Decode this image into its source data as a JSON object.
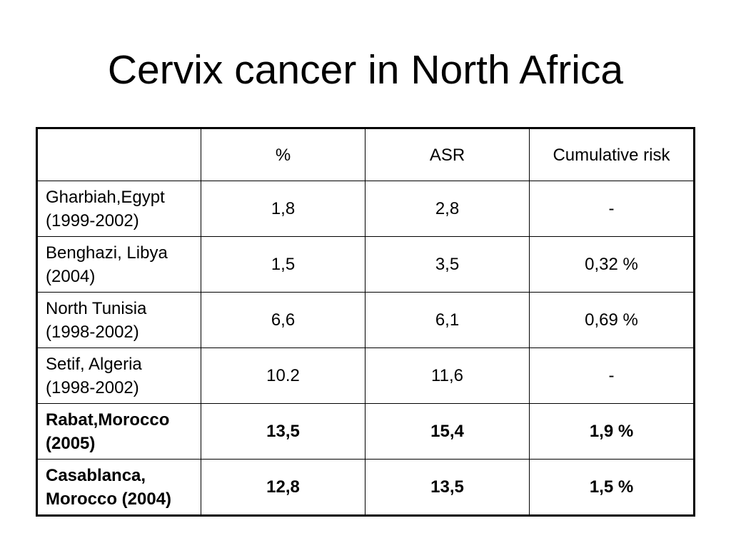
{
  "title": "Cervix cancer in North Africa",
  "table": {
    "headers": [
      "",
      "%",
      "ASR",
      "Cumulative risk"
    ],
    "rows": [
      {
        "location": "Gharbiah,Egypt",
        "period": "(1999-2002)",
        "percent": "1,8",
        "asr": "2,8",
        "cumulative_risk": "-",
        "bold": false
      },
      {
        "location": "Benghazi, Libya",
        "period": "(2004)",
        "percent": "1,5",
        "asr": "3,5",
        "cumulative_risk": "0,32 %",
        "bold": false
      },
      {
        "location": "North Tunisia",
        "period": "(1998-2002)",
        "percent": "6,6",
        "asr": "6,1",
        "cumulative_risk": "0,69 %",
        "bold": false
      },
      {
        "location": "Setif, Algeria",
        "period": "(1998-2002)",
        "percent": "10.2",
        "asr": "11,6",
        "cumulative_risk": "-",
        "bold": false
      },
      {
        "location": "Rabat,Morocco",
        "period": "(2005)",
        "percent": "13,5",
        "asr": "15,4",
        "cumulative_risk": "1,9 %",
        "bold": true
      },
      {
        "location": "Casablanca,",
        "period": "Morocco (2004)",
        "percent": "12,8",
        "asr": "13,5",
        "cumulative_risk": "1,5 %",
        "bold": true
      }
    ]
  }
}
